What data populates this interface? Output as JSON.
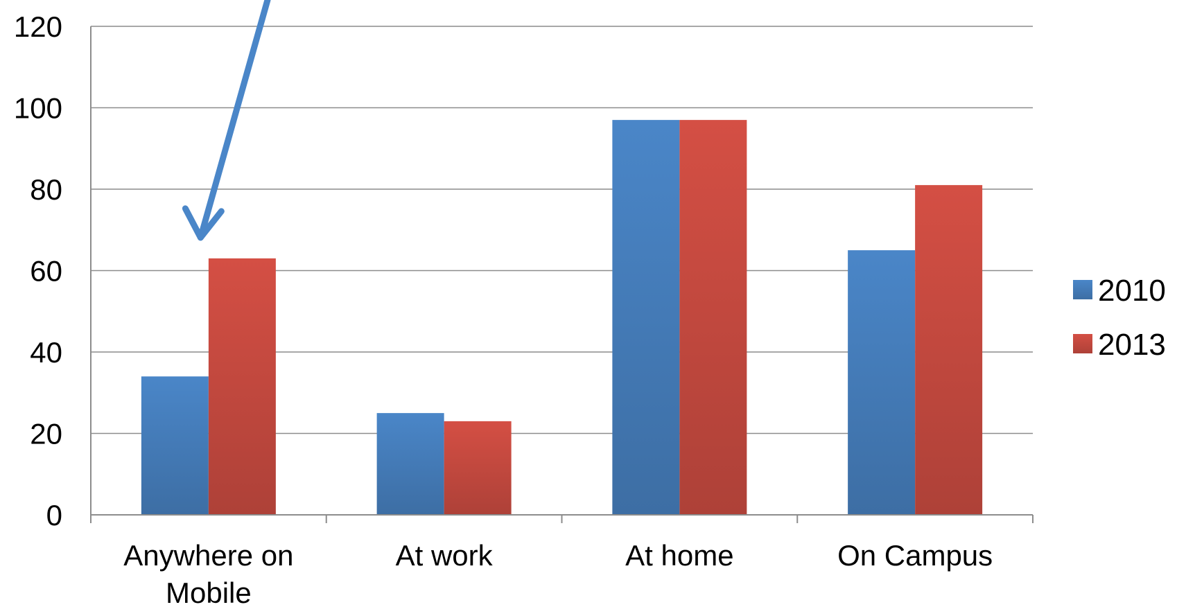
{
  "chart_data": {
    "type": "bar",
    "categories": [
      [
        "Anywhere on",
        "Mobile"
      ],
      [
        "At work"
      ],
      [
        "At home"
      ],
      [
        "On Campus"
      ]
    ],
    "series": [
      {
        "name": "2010",
        "values": [
          34,
          25,
          97,
          65
        ],
        "color": "#4a86c8"
      },
      {
        "name": "2013",
        "values": [
          63,
          23,
          97,
          81
        ],
        "color": "#d44f44"
      }
    ],
    "y_ticks": [
      "0",
      "20",
      "40",
      "60",
      "80",
      "100",
      "120"
    ],
    "ylim": [
      0,
      120
    ],
    "grid": true,
    "legend_position": "right",
    "annotation": {
      "type": "arrow",
      "target_category_index": 0,
      "target_series_index": 1,
      "color": "#4a86c8"
    }
  }
}
